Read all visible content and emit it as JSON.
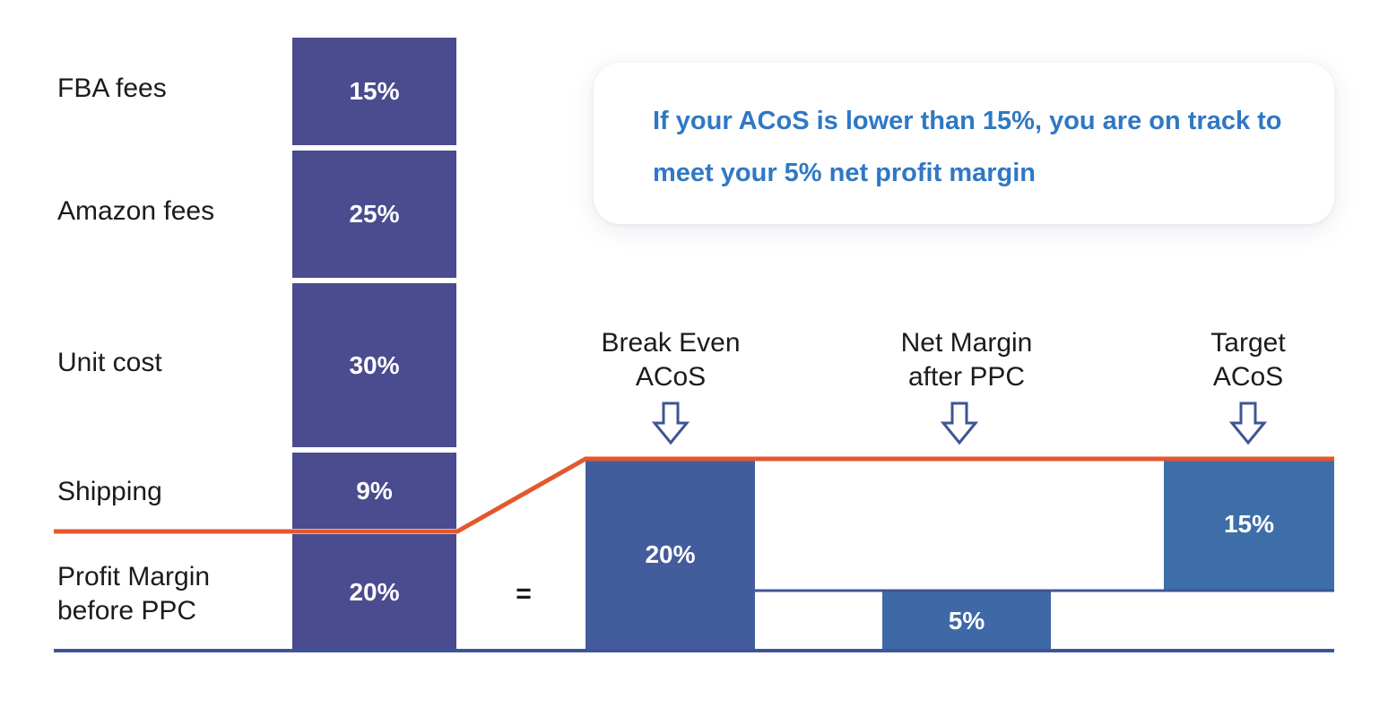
{
  "stack": {
    "items": [
      {
        "label": "FBA fees",
        "value": "15%"
      },
      {
        "label": "Amazon fees",
        "value": "25%"
      },
      {
        "label": "Unit cost",
        "value": "30%"
      },
      {
        "label": "Shipping",
        "value": "9%"
      },
      {
        "label": "Profit Margin before PPC",
        "value": "20%"
      }
    ],
    "equals": "="
  },
  "callout": {
    "text": "If your ACoS is lower than 15%, you are on track to meet your 5% net profit margin"
  },
  "breakdown": {
    "columns": [
      {
        "label_line1": "Break Even",
        "label_line2": "ACoS",
        "value": "20%"
      },
      {
        "label_line1": "Net Margin",
        "label_line2": "after PPC",
        "value": "5%"
      },
      {
        "label_line1": "Target",
        "label_line2": "ACoS",
        "value": "15%"
      }
    ]
  },
  "colors": {
    "stack_fill": "#4b4b8f",
    "break_even_fill": "#435c9c",
    "net_margin_fill": "#3f68a6",
    "target_fill": "#3d6ea8",
    "line_orange": "#e4572e",
    "baseline_blue": "#3f5496",
    "callout_text": "#2f78c4"
  }
}
